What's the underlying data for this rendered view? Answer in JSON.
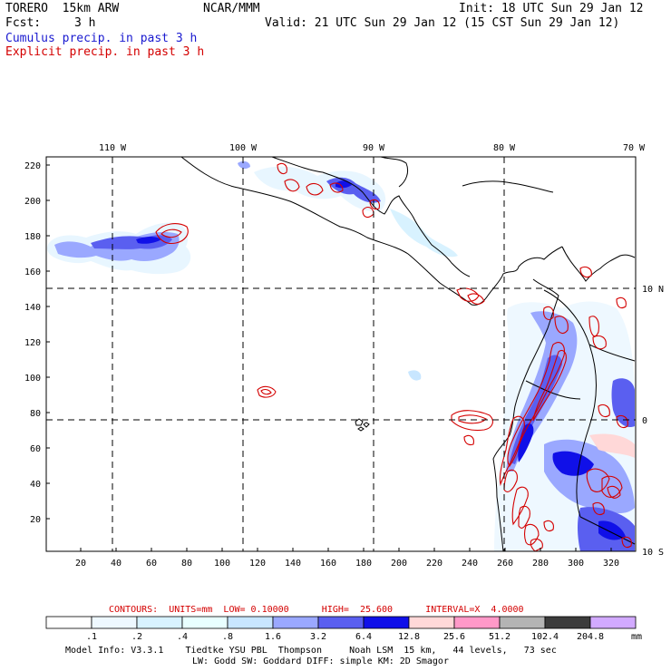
{
  "header": {
    "model": "TORERO  15km ARW",
    "org": "NCAR/MMM",
    "init": "Init: 18 UTC Sun 29 Jan 12",
    "fcst_label": "Fcst:",
    "fcst_value": "3 h",
    "valid": "Valid: 21 UTC Sun 29 Jan 12 (15 CST Sun 29 Jan 12)",
    "field1": "Cumulus precip. in past 3 h",
    "field2": "Explicit precip. in past 3 h"
  },
  "colors": {
    "field1": "#1a1ad0",
    "field2": "#d40000"
  },
  "map": {
    "lon_labels": [
      "110 W",
      "100 W",
      "90 W",
      "80 W",
      "70 W"
    ],
    "lat_labels": [
      "10 N",
      "0",
      "10 S"
    ],
    "y_ticks": [
      "220",
      "200",
      "180",
      "160",
      "140",
      "120",
      "100",
      "80",
      "60",
      "40",
      "20"
    ],
    "x_ticks": [
      "20",
      "40",
      "60",
      "80",
      "100",
      "120",
      "140",
      "160",
      "180",
      "200",
      "220",
      "240",
      "260",
      "280",
      "300",
      "320"
    ]
  },
  "contours": {
    "text": "CONTOURS:  UNITS=mm  LOW= 0.10000      HIGH=  25.600      INTERVAL=X  4.0000"
  },
  "legend": {
    "unit": "mm",
    "labels": [
      ".1",
      ".2",
      ".4",
      ".8",
      "1.6",
      "3.2",
      "6.4",
      "12.8",
      "25.6",
      "51.2",
      "102.4",
      "204.8"
    ],
    "colors": [
      "#ffffff",
      "#eef8ff",
      "#d8f2ff",
      "#e8ffff",
      "#c8e6ff",
      "#9aa8ff",
      "#5a5ff0",
      "#1010e8",
      "#ffd8d8",
      "#ff99c8",
      "#b4b4b4",
      "#3c3c3c",
      "#d2aaff"
    ]
  },
  "footer": {
    "line1": "Model Info: V3.3.1    Tiedtke YSU PBL  Thompson     Noah LSM  15 km,   44 levels,   73 sec",
    "line2": "LW: Godd SW: Goddard DIFF: simple KM: 2D Smagor"
  }
}
